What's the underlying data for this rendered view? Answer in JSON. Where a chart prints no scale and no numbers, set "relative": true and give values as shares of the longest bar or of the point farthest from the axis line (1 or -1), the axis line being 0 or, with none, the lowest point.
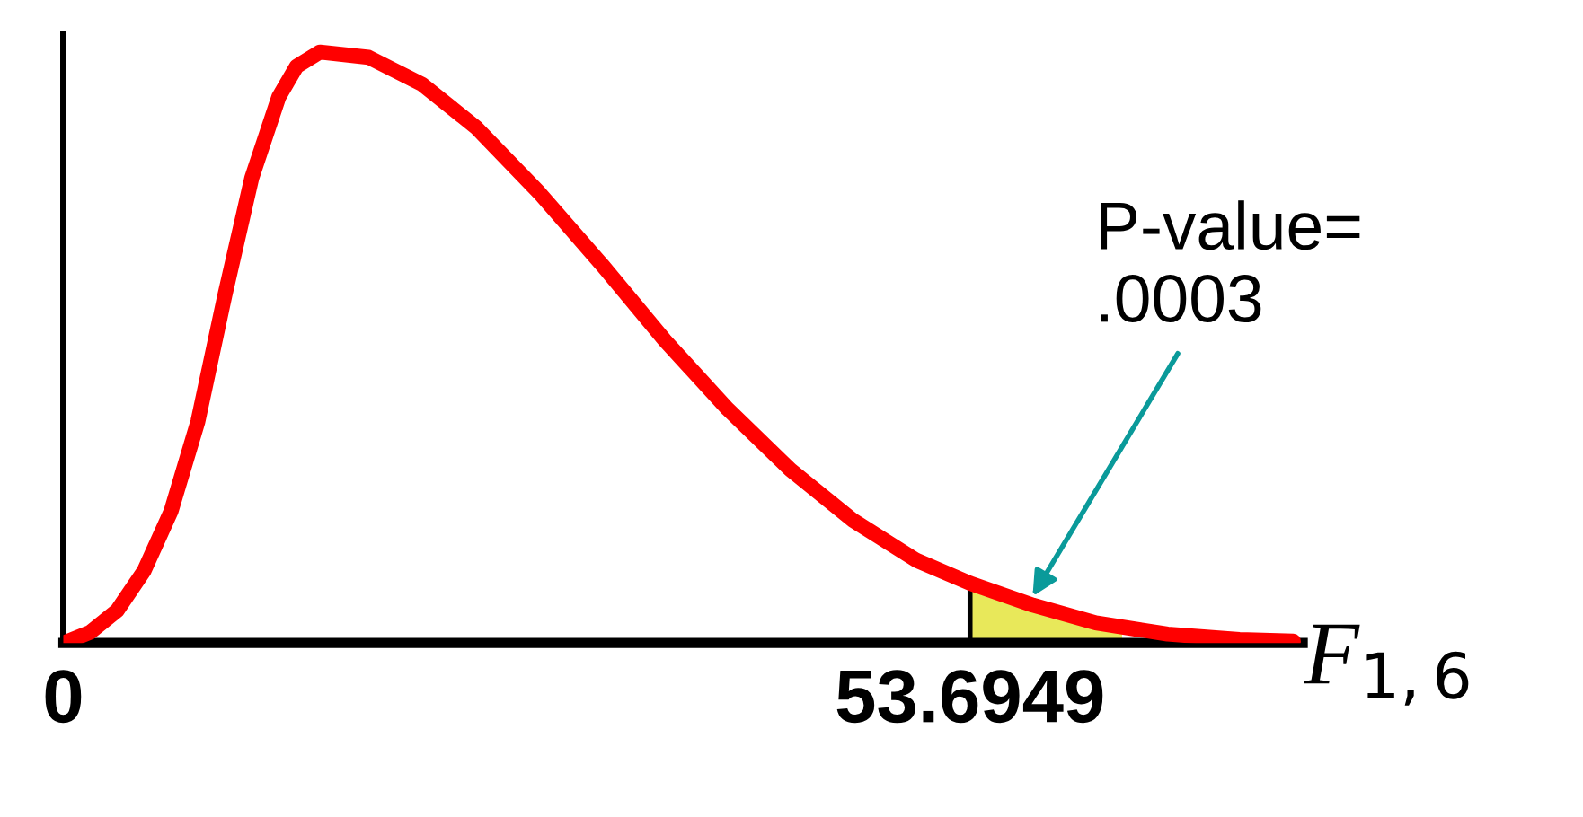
{
  "chart_data": {
    "type": "line",
    "relative": true,
    "xlabel": "F$_{1,6}$",
    "x": [
      0,
      1.59,
      3.19,
      4.78,
      6.38,
      7.97,
      9.57,
      11.16,
      12.76,
      13.82,
      15.2,
      18.08,
      21.27,
      24.46,
      28.18,
      31.9,
      35.62,
      39.34,
      43.06,
      46.79,
      50.51,
      53.69,
      57.42,
      61.14,
      65.39,
      69.65,
      72.84
    ],
    "series": [
      {
        "type": "line",
        "color": "#000000",
        "x": [
          53.6949,
          53.6949
        ],
        "values": [
          0,
          0.101
        ]
      },
      {
        "type": "area",
        "color": "#e8e85a",
        "x": [
          53.6949,
          57.42,
          61.14,
          62.7
        ],
        "values": [
          0.101,
          0.064,
          0.034,
          0.026
        ]
      },
      {
        "color": "#ff0000",
        "values": [
          0,
          0.018,
          0.055,
          0.122,
          0.223,
          0.375,
          0.589,
          0.787,
          0.924,
          0.976,
          1,
          0.991,
          0.945,
          0.872,
          0.762,
          0.64,
          0.512,
          0.396,
          0.293,
          0.207,
          0.14,
          0.101,
          0.064,
          0.034,
          0.015,
          0.006,
          0.003
        ]
      }
    ],
    "xlim": [
      0,
      73.4
    ],
    "xticks": [
      0,
      53.6949
    ],
    "tick_labels": "x",
    "grid": false,
    "marker": "none",
    "line_style": "solid",
    "annotations": [
      {
        "text": "P-value=\n.0003",
        "x": 57.4,
        "y": 0.079
      }
    ]
  }
}
